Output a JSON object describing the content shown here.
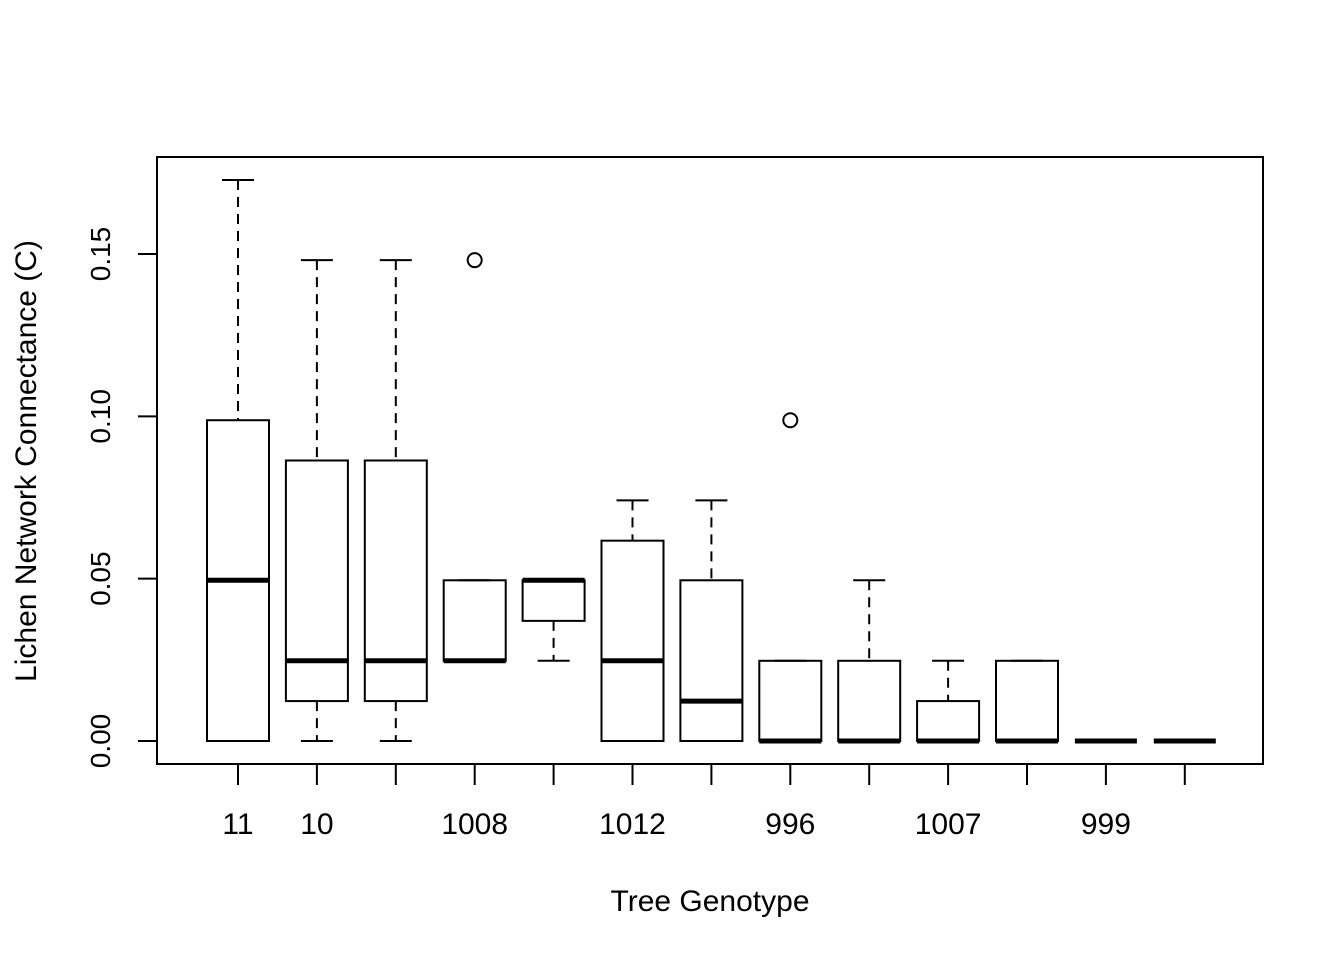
{
  "chart_data": {
    "type": "boxplot",
    "title": "",
    "xlabel": "Tree Genotype",
    "ylabel": "Lichen Network Connectance (C)",
    "ylim": [
      -0.006,
      0.18
    ],
    "yticks": [
      0.0,
      0.05,
      0.1,
      0.15
    ],
    "ytick_labels": [
      "0.00",
      "0.05",
      "0.10",
      "0.15"
    ],
    "grid": false,
    "legend": "none",
    "xtick_labels": [
      "11",
      "10",
      "",
      "1008",
      "",
      "1012",
      "",
      "996",
      "",
      "1007",
      "",
      "999",
      ""
    ],
    "boxes": [
      {
        "label": "11",
        "whisker_low": 0.0,
        "q1": 0.0,
        "median": 0.0495,
        "q3": 0.0988,
        "whisker_high": 0.1728,
        "outliers": []
      },
      {
        "label": "10",
        "whisker_low": 0.0,
        "q1": 0.0123,
        "median": 0.0247,
        "q3": 0.0864,
        "whisker_high": 0.1481,
        "outliers": []
      },
      {
        "label": "",
        "whisker_low": 0.0,
        "q1": 0.0123,
        "median": 0.0247,
        "q3": 0.0864,
        "whisker_high": 0.1481,
        "outliers": []
      },
      {
        "label": "1008",
        "whisker_low": 0.0247,
        "q1": 0.0247,
        "median": 0.0247,
        "q3": 0.0495,
        "whisker_high": 0.0495,
        "outliers": [
          0.1481
        ]
      },
      {
        "label": "",
        "whisker_low": 0.0247,
        "q1": 0.037,
        "median": 0.0495,
        "q3": 0.0495,
        "whisker_high": 0.0495,
        "outliers": []
      },
      {
        "label": "1012",
        "whisker_low": 0.0,
        "q1": 0.0,
        "median": 0.0247,
        "q3": 0.0617,
        "whisker_high": 0.0741,
        "outliers": []
      },
      {
        "label": "",
        "whisker_low": 0.0,
        "q1": 0.0,
        "median": 0.0123,
        "q3": 0.0495,
        "whisker_high": 0.0741,
        "outliers": []
      },
      {
        "label": "996",
        "whisker_low": 0.0,
        "q1": 0.0,
        "median": 0.0,
        "q3": 0.0247,
        "whisker_high": 0.0247,
        "outliers": [
          0.0988
        ]
      },
      {
        "label": "",
        "whisker_low": 0.0,
        "q1": 0.0,
        "median": 0.0,
        "q3": 0.0247,
        "whisker_high": 0.0495,
        "outliers": []
      },
      {
        "label": "1007",
        "whisker_low": 0.0,
        "q1": 0.0,
        "median": 0.0,
        "q3": 0.0123,
        "whisker_high": 0.0247,
        "outliers": []
      },
      {
        "label": "",
        "whisker_low": 0.0,
        "q1": 0.0,
        "median": 0.0,
        "q3": 0.0247,
        "whisker_high": 0.0247,
        "outliers": []
      },
      {
        "label": "999",
        "whisker_low": 0.0,
        "q1": 0.0,
        "median": 0.0,
        "q3": 0.0,
        "whisker_high": 0.0,
        "outliers": []
      },
      {
        "label": "",
        "whisker_low": 0.0,
        "q1": 0.0,
        "median": 0.0,
        "q3": 0.0,
        "whisker_high": 0.0,
        "outliers": []
      }
    ]
  }
}
